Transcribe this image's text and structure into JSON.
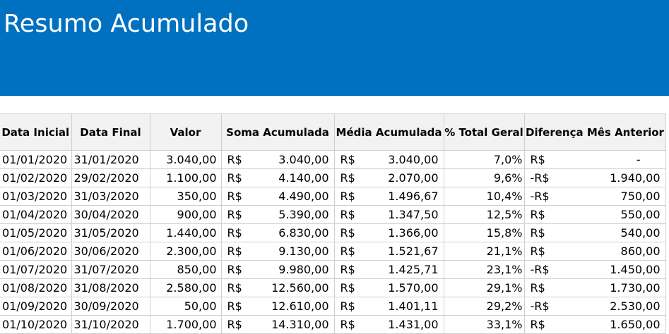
{
  "title": "Resumo Acumulado",
  "headers": [
    "Data Inicial",
    "Data Final",
    "Valor",
    "Soma Acumulada",
    "Média Acumulada",
    "% Total Geral",
    "Diferença Mês Anterior"
  ],
  "rows": [
    {
      "start": "01/01/2020",
      "end": "31/01/2020",
      "valor": "3.040,00",
      "soma_sym": "R$",
      "soma": "3.040,00",
      "media_sym": "R$",
      "media": "3.040,00",
      "pct": "7,0%",
      "dif_sym": "R$",
      "dif": "-"
    },
    {
      "start": "01/02/2020",
      "end": "29/02/2020",
      "valor": "1.100,00",
      "soma_sym": "R$",
      "soma": "4.140,00",
      "media_sym": "R$",
      "media": "2.070,00",
      "pct": "9,6%",
      "dif_sym": "-R$",
      "dif": "1.940,00"
    },
    {
      "start": "01/03/2020",
      "end": "31/03/2020",
      "valor": "350,00",
      "soma_sym": "R$",
      "soma": "4.490,00",
      "media_sym": "R$",
      "media": "1.496,67",
      "pct": "10,4%",
      "dif_sym": "-R$",
      "dif": "750,00"
    },
    {
      "start": "01/04/2020",
      "end": "30/04/2020",
      "valor": "900,00",
      "soma_sym": "R$",
      "soma": "5.390,00",
      "media_sym": "R$",
      "media": "1.347,50",
      "pct": "12,5%",
      "dif_sym": "R$",
      "dif": "550,00"
    },
    {
      "start": "01/05/2020",
      "end": "31/05/2020",
      "valor": "1.440,00",
      "soma_sym": "R$",
      "soma": "6.830,00",
      "media_sym": "R$",
      "media": "1.366,00",
      "pct": "15,8%",
      "dif_sym": "R$",
      "dif": "540,00"
    },
    {
      "start": "01/06/2020",
      "end": "30/06/2020",
      "valor": "2.300,00",
      "soma_sym": "R$",
      "soma": "9.130,00",
      "media_sym": "R$",
      "media": "1.521,67",
      "pct": "21,1%",
      "dif_sym": "R$",
      "dif": "860,00"
    },
    {
      "start": "01/07/2020",
      "end": "31/07/2020",
      "valor": "850,00",
      "soma_sym": "R$",
      "soma": "9.980,00",
      "media_sym": "R$",
      "media": "1.425,71",
      "pct": "23,1%",
      "dif_sym": "-R$",
      "dif": "1.450,00"
    },
    {
      "start": "01/08/2020",
      "end": "31/08/2020",
      "valor": "2.580,00",
      "soma_sym": "R$",
      "soma": "12.560,00",
      "media_sym": "R$",
      "media": "1.570,00",
      "pct": "29,1%",
      "dif_sym": "R$",
      "dif": "1.730,00"
    },
    {
      "start": "01/09/2020",
      "end": "30/09/2020",
      "valor": "50,00",
      "soma_sym": "R$",
      "soma": "12.610,00",
      "media_sym": "R$",
      "media": "1.401,11",
      "pct": "29,2%",
      "dif_sym": "-R$",
      "dif": "2.530,00"
    },
    {
      "start": "01/10/2020",
      "end": "31/10/2020",
      "valor": "1.700,00",
      "soma_sym": "R$",
      "soma": "14.310,00",
      "media_sym": "R$",
      "media": "1.431,00",
      "pct": "33,1%",
      "dif_sym": "R$",
      "dif": "1.650,00"
    }
  ],
  "colors": {
    "banner": "#0070c0",
    "header_bg": "#f2f2f2",
    "grid": "#d0d0d0"
  }
}
